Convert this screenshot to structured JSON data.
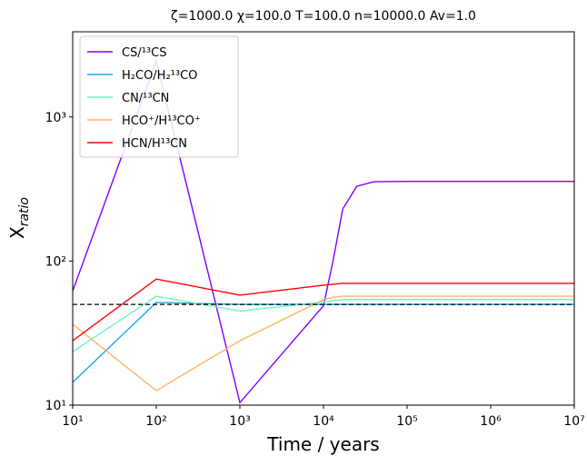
{
  "chart_data": {
    "type": "line",
    "title": "ζ=1000.0 χ=100.0 T=100.0 n=10000.0  Av=1.0",
    "xlabel": "Time / years",
    "ylabel": "X",
    "ylabel_subscript": "ratio",
    "xscale": "log",
    "yscale": "log",
    "xlim": [
      10,
      10000000
    ],
    "ylim": [
      10,
      3900
    ],
    "xticks": [
      {
        "value": 10,
        "label": "10¹"
      },
      {
        "value": 100,
        "label": "10²"
      },
      {
        "value": 1000,
        "label": "10³"
      },
      {
        "value": 10000,
        "label": "10⁴"
      },
      {
        "value": 100000,
        "label": "10⁵"
      },
      {
        "value": 1000000,
        "label": "10⁶"
      },
      {
        "value": 10000000,
        "label": "10⁷"
      }
    ],
    "yticks": [
      {
        "value": 10,
        "label": "10¹"
      },
      {
        "value": 100,
        "label": "10²"
      },
      {
        "value": 1000,
        "label": "10³"
      }
    ],
    "legend": "upper left",
    "reference_line": {
      "value": 50,
      "color": "#000000"
    },
    "x": [
      10,
      100,
      1000,
      10000,
      13000,
      17000,
      25000,
      40000,
      100000,
      1000000,
      10000000
    ],
    "series": [
      {
        "name": "CS/¹³CS",
        "color": "#8000ff",
        "values": [
          62,
          2430,
          10.4,
          49,
          100,
          230,
          330,
          355,
          357,
          357,
          357
        ]
      },
      {
        "name": "H₂CO/H₂¹³CO",
        "color": "#1aa8e6",
        "values": [
          14.4,
          51.6,
          50,
          50,
          50,
          50,
          50,
          50,
          50,
          50,
          50
        ]
      },
      {
        "name": "CN/¹³CN",
        "color": "#6af5c0",
        "values": [
          23.5,
          57,
          45,
          52,
          53,
          54,
          54,
          54,
          54,
          54,
          54
        ]
      },
      {
        "name": "HCO⁺/H¹³CO⁺",
        "color": "#ffb360",
        "values": [
          36.4,
          12.6,
          28,
          54,
          56,
          57,
          57,
          57,
          57,
          57,
          57
        ]
      },
      {
        "name": "HCN/H¹³CN",
        "color": "#ff0000",
        "values": [
          28,
          75,
          58,
          68,
          69,
          70,
          70,
          70,
          70,
          70,
          70
        ]
      }
    ]
  }
}
